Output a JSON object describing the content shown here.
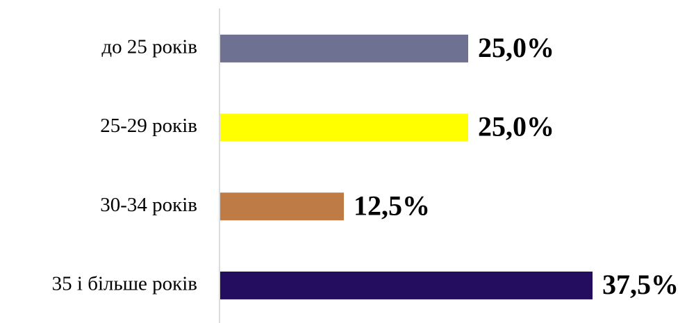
{
  "chart_data": {
    "type": "hbar",
    "categories": [
      "до 25 років",
      "25-29 років",
      "30-34 років",
      "35 і більше років"
    ],
    "values": [
      25,
      25,
      12.5,
      37.5
    ],
    "value_labels": [
      "25,0%",
      "25,0%",
      "12,5%",
      "37,5%"
    ],
    "colors": [
      "#6e7191",
      "#ffff00",
      "#bf7b45",
      "#240c5e"
    ]
  }
}
